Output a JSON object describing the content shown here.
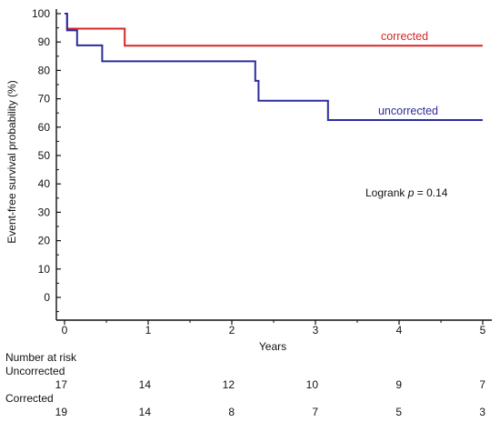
{
  "chart_data": {
    "type": "line",
    "step": true,
    "ylabel": "Event-free survival probability (%)",
    "xlabel": "Years",
    "xlim": [
      0,
      5
    ],
    "ylim": [
      -5,
      100
    ],
    "x_ticks": [
      "0",
      "1",
      "2",
      "3",
      "4",
      "5"
    ],
    "y_ticks": [
      "100",
      "90",
      "80",
      "70",
      "60",
      "50",
      "40",
      "30",
      "20",
      "10",
      "0"
    ],
    "series": [
      {
        "name": "corrected",
        "color": "#d62728",
        "points": [
          [
            0,
            100
          ],
          [
            0.03,
            100
          ],
          [
            0.03,
            94.7
          ],
          [
            0.72,
            94.7
          ],
          [
            0.72,
            88.7
          ],
          [
            5,
            88.7
          ]
        ]
      },
      {
        "name": "uncorrected",
        "color": "#2c2c9e",
        "points": [
          [
            0,
            100
          ],
          [
            0.03,
            100
          ],
          [
            0.03,
            94.1
          ],
          [
            0.15,
            94.1
          ],
          [
            0.15,
            88.8
          ],
          [
            0.45,
            88.8
          ],
          [
            0.45,
            83.2
          ],
          [
            2.28,
            83.2
          ],
          [
            2.28,
            76.3
          ],
          [
            2.32,
            76.3
          ],
          [
            2.32,
            69.3
          ],
          [
            3.15,
            69.3
          ],
          [
            3.15,
            62.5
          ],
          [
            5,
            62.5
          ]
        ]
      }
    ],
    "annotation": {
      "prefix": "Logrank ",
      "italic": "p",
      "suffix": " = 0.14"
    }
  },
  "risk_table": {
    "title": "Number at risk",
    "groups": [
      {
        "label": "Uncorrected",
        "values": [
          "17",
          "14",
          "12",
          "10",
          "9",
          "7"
        ]
      },
      {
        "label": "Corrected",
        "values": [
          "19",
          "14",
          "8",
          "7",
          "5",
          "3"
        ]
      }
    ]
  }
}
